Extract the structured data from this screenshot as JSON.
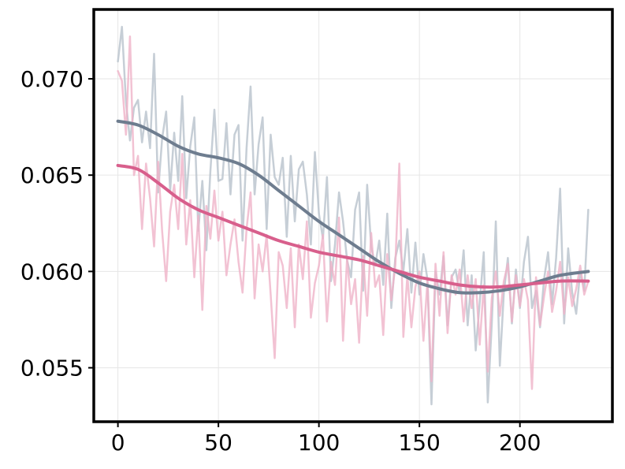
{
  "chart_data": {
    "type": "line",
    "title": "",
    "xlabel": "",
    "ylabel": "",
    "xlim": [
      -12,
      246
    ],
    "ylim": [
      0.0522,
      0.0736
    ],
    "grid": true,
    "legend": "none",
    "x_ticks": [
      0,
      50,
      100,
      150,
      200
    ],
    "x_tick_labels": [
      "0",
      "50",
      "100",
      "150",
      "200"
    ],
    "y_ticks": [
      0.055,
      0.06,
      0.065,
      0.07
    ],
    "y_tick_labels": [
      "0.055",
      "0.060",
      "0.065",
      "0.070"
    ],
    "series": [
      {
        "role": "raw",
        "color": "#b8c2cc",
        "opacity": 0.8,
        "x": [
          0,
          2,
          4,
          6,
          8,
          10,
          12,
          14,
          16,
          18,
          20,
          22,
          24,
          26,
          28,
          30,
          32,
          34,
          36,
          38,
          40,
          42,
          44,
          46,
          48,
          50,
          52,
          54,
          56,
          58,
          60,
          62,
          64,
          66,
          68,
          70,
          72,
          74,
          76,
          78,
          80,
          82,
          84,
          86,
          88,
          90,
          92,
          94,
          96,
          98,
          100,
          102,
          104,
          106,
          108,
          110,
          112,
          114,
          116,
          118,
          120,
          122,
          124,
          126,
          128,
          130,
          132,
          134,
          136,
          138,
          140,
          142,
          144,
          146,
          148,
          150,
          152,
          154,
          156,
          158,
          160,
          162,
          164,
          166,
          168,
          170,
          172,
          174,
          176,
          178,
          180,
          182,
          184,
          186,
          188,
          190,
          192,
          194,
          196,
          198,
          200,
          202,
          204,
          206,
          208,
          210,
          212,
          214,
          216,
          218,
          220,
          222,
          224,
          226,
          228,
          230,
          232,
          234
        ],
        "values": [
          0.0709,
          0.0727,
          0.0688,
          0.0668,
          0.0685,
          0.0689,
          0.0667,
          0.0683,
          0.0664,
          0.0713,
          0.0641,
          0.0669,
          0.0683,
          0.0642,
          0.0672,
          0.0647,
          0.0691,
          0.0638,
          0.0665,
          0.068,
          0.0621,
          0.0647,
          0.0611,
          0.0652,
          0.0684,
          0.0647,
          0.0648,
          0.0677,
          0.064,
          0.0671,
          0.0676,
          0.0616,
          0.0664,
          0.0696,
          0.064,
          0.0666,
          0.068,
          0.0622,
          0.0671,
          0.0649,
          0.0645,
          0.0659,
          0.0618,
          0.066,
          0.0626,
          0.0653,
          0.0657,
          0.064,
          0.0614,
          0.0662,
          0.063,
          0.0617,
          0.0649,
          0.0595,
          0.0614,
          0.0641,
          0.0626,
          0.0606,
          0.0597,
          0.0632,
          0.0641,
          0.059,
          0.0645,
          0.0613,
          0.0603,
          0.0616,
          0.0593,
          0.063,
          0.0581,
          0.0607,
          0.0616,
          0.06,
          0.0622,
          0.0589,
          0.0615,
          0.0588,
          0.0609,
          0.0596,
          0.0531,
          0.06,
          0.0588,
          0.0608,
          0.0572,
          0.0597,
          0.0601,
          0.0589,
          0.0611,
          0.0572,
          0.0598,
          0.0559,
          0.0584,
          0.061,
          0.0532,
          0.0573,
          0.0626,
          0.0551,
          0.0589,
          0.0607,
          0.0573,
          0.0601,
          0.0581,
          0.0605,
          0.0618,
          0.0581,
          0.059,
          0.0571,
          0.0596,
          0.061,
          0.0583,
          0.0607,
          0.0643,
          0.0573,
          0.0612,
          0.0589,
          0.0578,
          0.06,
          0.059,
          0.0632
        ]
      },
      {
        "role": "raw",
        "color": "#efb3c8",
        "opacity": 0.8,
        "x": [
          0,
          2,
          4,
          6,
          8,
          10,
          12,
          14,
          16,
          18,
          20,
          22,
          24,
          26,
          28,
          30,
          32,
          34,
          36,
          38,
          40,
          42,
          44,
          46,
          48,
          50,
          52,
          54,
          56,
          58,
          60,
          62,
          64,
          66,
          68,
          70,
          72,
          74,
          76,
          78,
          80,
          82,
          84,
          86,
          88,
          90,
          92,
          94,
          96,
          98,
          100,
          102,
          104,
          106,
          108,
          110,
          112,
          114,
          116,
          118,
          120,
          122,
          124,
          126,
          128,
          130,
          132,
          134,
          136,
          138,
          140,
          142,
          144,
          146,
          148,
          150,
          152,
          154,
          156,
          158,
          160,
          162,
          164,
          166,
          168,
          170,
          172,
          174,
          176,
          178,
          180,
          182,
          184,
          186,
          188,
          190,
          192,
          194,
          196,
          198,
          200,
          202,
          204,
          206,
          208,
          210,
          212,
          214,
          216,
          218,
          220,
          222,
          224,
          226,
          228,
          230,
          232,
          234
        ],
        "values": [
          0.0704,
          0.0699,
          0.0671,
          0.0722,
          0.065,
          0.066,
          0.0622,
          0.0656,
          0.0638,
          0.0613,
          0.0657,
          0.0621,
          0.0595,
          0.0631,
          0.0645,
          0.0622,
          0.0661,
          0.0614,
          0.0637,
          0.0597,
          0.0629,
          0.058,
          0.0634,
          0.0617,
          0.0642,
          0.0616,
          0.0631,
          0.0598,
          0.0614,
          0.0627,
          0.0605,
          0.0589,
          0.0622,
          0.0641,
          0.0586,
          0.0614,
          0.06,
          0.0619,
          0.0588,
          0.0555,
          0.061,
          0.0603,
          0.0581,
          0.0612,
          0.0571,
          0.0614,
          0.0596,
          0.0626,
          0.0576,
          0.0594,
          0.0603,
          0.0619,
          0.0574,
          0.0605,
          0.0593,
          0.0628,
          0.0564,
          0.0607,
          0.0583,
          0.0596,
          0.0563,
          0.0608,
          0.0577,
          0.062,
          0.0592,
          0.0598,
          0.0567,
          0.0609,
          0.0585,
          0.0603,
          0.0656,
          0.0566,
          0.0598,
          0.0571,
          0.0592,
          0.06,
          0.0564,
          0.0595,
          0.0543,
          0.0604,
          0.0577,
          0.061,
          0.0568,
          0.0598,
          0.0588,
          0.0601,
          0.0574,
          0.0598,
          0.0581,
          0.0596,
          0.0562,
          0.0593,
          0.0548,
          0.0586,
          0.06,
          0.0577,
          0.0595,
          0.0604,
          0.0574,
          0.0598,
          0.0582,
          0.0596,
          0.0585,
          0.0539,
          0.0597,
          0.0572,
          0.0587,
          0.06,
          0.0579,
          0.059,
          0.0605,
          0.0578,
          0.0597,
          0.0582,
          0.0591,
          0.0603,
          0.0588,
          0.0595
        ]
      },
      {
        "role": "smoothed",
        "color": "#6e7d8f",
        "opacity": 1,
        "x": [
          0,
          10,
          20,
          30,
          40,
          50,
          60,
          70,
          80,
          90,
          100,
          110,
          120,
          130,
          140,
          150,
          160,
          170,
          180,
          190,
          200,
          210,
          220,
          234
        ],
        "values": [
          0.0678,
          0.0676,
          0.0671,
          0.0665,
          0.0661,
          0.0659,
          0.0656,
          0.065,
          0.0642,
          0.0634,
          0.0626,
          0.0619,
          0.0612,
          0.0605,
          0.0599,
          0.0594,
          0.0591,
          0.0589,
          0.0589,
          0.059,
          0.0592,
          0.0595,
          0.0598,
          0.06
        ]
      },
      {
        "role": "smoothed",
        "color": "#d85f8c",
        "opacity": 1,
        "x": [
          0,
          10,
          20,
          30,
          40,
          50,
          60,
          70,
          80,
          90,
          100,
          110,
          120,
          130,
          140,
          150,
          160,
          170,
          180,
          190,
          200,
          210,
          220,
          234
        ],
        "values": [
          0.0655,
          0.0653,
          0.0646,
          0.0638,
          0.0632,
          0.0628,
          0.0624,
          0.062,
          0.0616,
          0.0613,
          0.061,
          0.0608,
          0.0606,
          0.0603,
          0.06,
          0.0597,
          0.0595,
          0.0593,
          0.0592,
          0.0592,
          0.0593,
          0.0594,
          0.0595,
          0.0595
        ]
      }
    ]
  }
}
